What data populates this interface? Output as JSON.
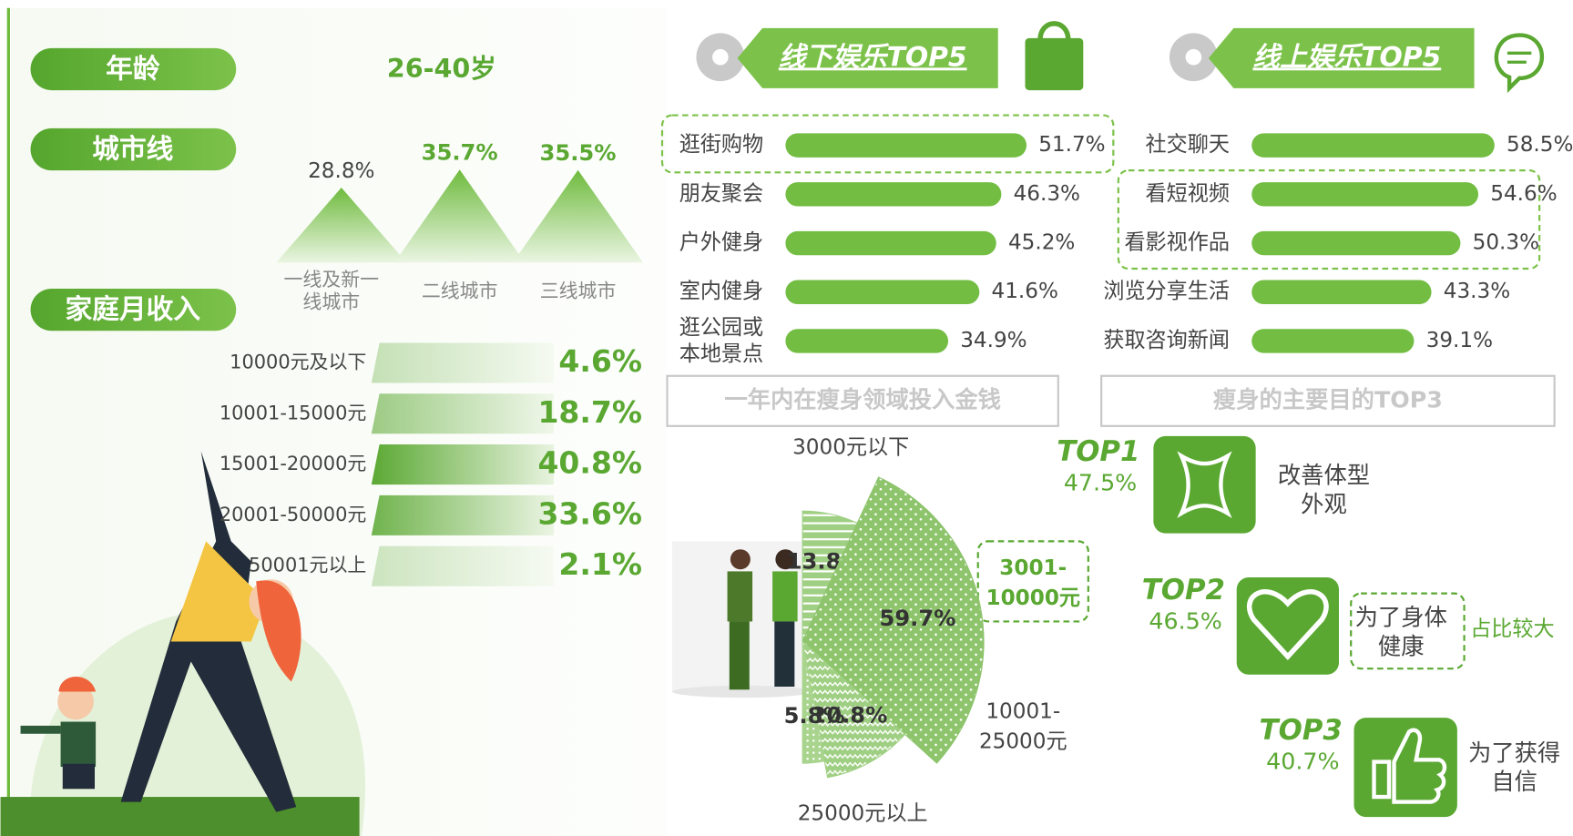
{
  "profile": {
    "age_label": "年龄",
    "age_value": "26-40岁"
  },
  "chart_data": [
    {
      "type": "mountain",
      "title": "城市线",
      "categories": [
        "一线及新一线城市",
        "二线城市",
        "三线城市"
      ],
      "values": [
        28.8,
        35.7,
        35.5
      ],
      "value_labels": [
        "28.8%",
        "35.7%",
        "35.5%"
      ],
      "color": "#6fbb3e"
    },
    {
      "type": "shade",
      "title": "家庭月收入",
      "categories": [
        "10000元及以下",
        "10001-15000元",
        "15001-20000元",
        "20001-50000元",
        "50001元以上"
      ],
      "values": [
        4.6,
        18.7,
        40.8,
        33.6,
        2.1
      ],
      "value_labels": [
        "4.6%",
        "18.7%",
        "40.8%",
        "33.6%",
        "2.1%"
      ],
      "color": "#5aa832"
    },
    {
      "type": "hbar",
      "title": "线下娱乐TOP5",
      "categories": [
        "逛街购物",
        "朋友聚会",
        "户外健身",
        "室内健身",
        "逛公园或本地景点"
      ],
      "values": [
        51.7,
        46.3,
        45.2,
        41.6,
        34.9
      ],
      "value_labels": [
        "51.7%",
        "46.3%",
        "45.2%",
        "41.6%",
        "34.9%"
      ],
      "color": "#72bd42"
    },
    {
      "type": "hbar",
      "title": "线上娱乐TOP5",
      "categories": [
        "社交聊天",
        "看短视频",
        "看影视作品",
        "浏览分享生活",
        "获取咨询新闻"
      ],
      "values": [
        58.5,
        54.6,
        50.3,
        43.3,
        39.1
      ],
      "value_labels": [
        "58.5%",
        "54.6%",
        "50.3%",
        "43.3%",
        "39.1%"
      ],
      "color": "#72bd42"
    },
    {
      "type": "pie",
      "title": "一年内在瘦身领域投入金钱",
      "categories": [
        "3000元以下",
        "3001-10000元",
        "10001-25000元",
        "25000元以上"
      ],
      "values": [
        13.8,
        59.7,
        20.8,
        5.8
      ],
      "value_labels": [
        "13.8%",
        "59.7%",
        "20.8%",
        "5.8%"
      ],
      "colors": [
        "#9fcf82",
        "#8dc46c",
        "#9fcf82",
        "#a8d48e"
      ]
    }
  ],
  "purpose": {
    "title": "瘦身的主要目的TOP3",
    "items": [
      {
        "rank": "TOP1",
        "share": "47.5%",
        "label": "改善体型外观"
      },
      {
        "rank": "TOP2",
        "share": "46.5%",
        "label": "为了身体健康"
      },
      {
        "rank": "TOP3",
        "share": "40.7%",
        "label": "为了获得自信"
      }
    ],
    "annotation": "占比较大"
  }
}
